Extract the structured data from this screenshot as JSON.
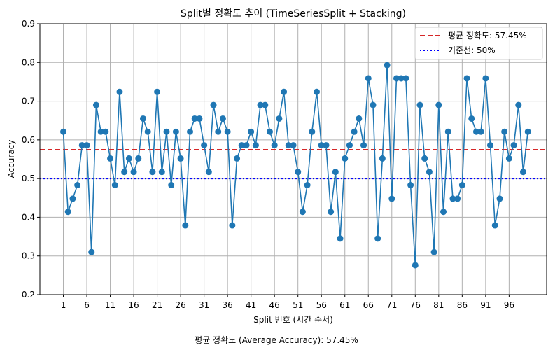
{
  "chart_data": {
    "type": "line",
    "title": "Split별 정확도 추이 (TimeSeriesSplit + Stacking)",
    "xlabel": "Split 번호 (시간 순서)",
    "ylabel": "Accuracy",
    "xlim": [
      -4,
      104
    ],
    "ylim": [
      0.2,
      0.9
    ],
    "xticks": [
      1,
      6,
      11,
      16,
      21,
      26,
      31,
      36,
      41,
      46,
      51,
      56,
      61,
      66,
      71,
      76,
      81,
      86,
      91,
      96
    ],
    "yticks": [
      0.2,
      0.3,
      0.4,
      0.5,
      0.6,
      0.7,
      0.8,
      0.9
    ],
    "grid": true,
    "legend_position": "top-right",
    "series": [
      {
        "color": "#1f77b4",
        "marker": "circle",
        "x": [
          1,
          2,
          3,
          4,
          5,
          6,
          7,
          8,
          9,
          10,
          11,
          12,
          13,
          14,
          15,
          16,
          17,
          18,
          19,
          20,
          21,
          22,
          23,
          24,
          25,
          26,
          27,
          28,
          29,
          30,
          31,
          32,
          33,
          34,
          35,
          36,
          37,
          38,
          39,
          40,
          41,
          42,
          43,
          44,
          45,
          46,
          47,
          48,
          49,
          50,
          51,
          52,
          53,
          54,
          55,
          56,
          57,
          58,
          59,
          60,
          61,
          62,
          63,
          64,
          65,
          66,
          67,
          68,
          69,
          70,
          71,
          72,
          73,
          74,
          75,
          76,
          77,
          78,
          79,
          80,
          81,
          82,
          83,
          84,
          85,
          86,
          87,
          88,
          89,
          90,
          91,
          92,
          93,
          94,
          95,
          96,
          97,
          98,
          99,
          100
        ],
        "values": [
          0.621,
          0.414,
          0.448,
          0.483,
          0.586,
          0.586,
          0.31,
          0.69,
          0.621,
          0.621,
          0.552,
          0.483,
          0.724,
          0.517,
          0.552,
          0.517,
          0.552,
          0.655,
          0.621,
          0.517,
          0.724,
          0.517,
          0.621,
          0.483,
          0.621,
          0.552,
          0.379,
          0.621,
          0.655,
          0.655,
          0.586,
          0.517,
          0.69,
          0.621,
          0.655,
          0.621,
          0.379,
          0.552,
          0.586,
          0.586,
          0.621,
          0.586,
          0.69,
          0.69,
          0.621,
          0.586,
          0.655,
          0.724,
          0.586,
          0.586,
          0.517,
          0.414,
          0.483,
          0.621,
          0.724,
          0.586,
          0.586,
          0.414,
          0.517,
          0.345,
          0.552,
          0.586,
          0.621,
          0.655,
          0.586,
          0.759,
          0.69,
          0.345,
          0.552,
          0.793,
          0.448,
          0.759,
          0.759,
          0.759,
          0.483,
          0.276,
          0.69,
          0.552,
          0.517,
          0.31,
          0.69,
          0.414,
          0.621,
          0.448,
          0.448,
          0.483,
          0.759,
          0.655,
          0.621,
          0.621,
          0.759,
          0.586,
          0.379,
          0.448,
          0.621,
          0.552,
          0.586,
          0.69,
          0.517,
          0.621
        ]
      }
    ],
    "reference_lines": [
      {
        "name": "평균 정확도: 57.45%",
        "y": 0.5745,
        "color": "#d62728",
        "style": "dashed"
      },
      {
        "name": "기준선: 50%",
        "y": 0.5,
        "color": "#0000ff",
        "style": "dotted"
      }
    ],
    "footnote": "평균 정확도 (Average Accuracy): 57.45%"
  }
}
